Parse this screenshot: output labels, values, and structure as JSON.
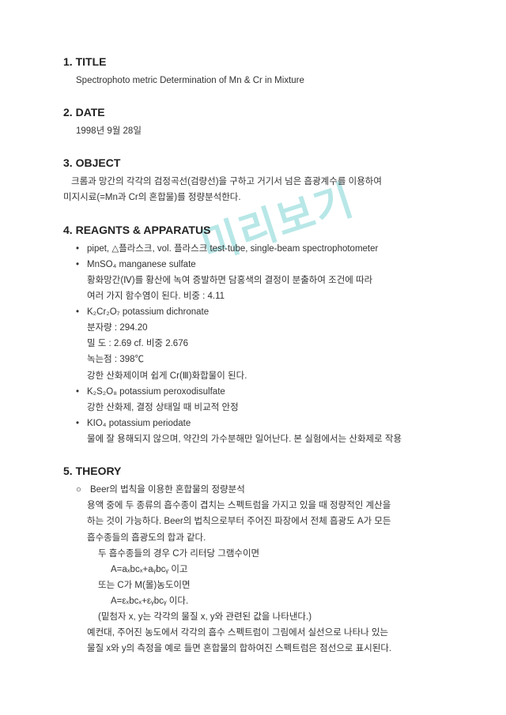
{
  "watermark": "미리보기",
  "sections": {
    "title": {
      "num": "1.",
      "heading": "TITLE",
      "body": "Spectrophoto metric Determination of Mn & Cr in Mixture"
    },
    "date": {
      "num": "2.",
      "heading": "DATE",
      "body": "1998년 9월 28일"
    },
    "object": {
      "num": "3.",
      "heading": "OBJECT",
      "line1": "크롬과 망간의 각각의 검정곡선(검량선)을 구하고 거기서 넘은 흡광계수를 이용하여",
      "line2": "미지시료(=Mn과 Cr의 혼합물)를 정량분석한다."
    },
    "reagents": {
      "num": "4.",
      "heading": "REAGNTS & APPARATUS",
      "items": [
        {
          "head": "pipet, △플라스크, vol. 플라스크  test-tube, single-beam spectrophotometer",
          "subs": []
        },
        {
          "head": "MnSO₄ manganese sulfate",
          "subs": [
            "황화망간(Ⅳ)를 황산에 녹여 증발하면 담홍색의 결정이 분출하여 조건에 따라",
            "여러 가지 함수염이 된다. 비중 : 4.11"
          ]
        },
        {
          "head": "K₂Cr₂O₇ potassium dichronate",
          "subs": [
            "분자량 : 294.20",
            "밀  도 : 2.69    cf. 비중 2.676",
            "녹는점 : 398℃",
            "강한 산화제이며 쉽게 Cr(Ⅲ)화합물이 된다."
          ]
        },
        {
          "head": "K₂S₂O₈ potassium peroxodisulfate",
          "subs": [
            "강한 산화제, 결정 상태일 때 비교적 안정"
          ]
        },
        {
          "head": "KIO₄ potassium periodate",
          "subs": [
            "물에 잘 용해되지 않으며, 약간의 가수분해만 일어난다. 본 실험에서는 산화제로 작용"
          ]
        }
      ]
    },
    "theory": {
      "num": "5.",
      "heading": "THEORY",
      "circleMark": "○",
      "circleText": "Beer의 법칙을 이용한 혼합물의 정량분석",
      "para1a": "용액 중에 두 종류의 흡수종이 겹치는 스펙트럼을 가지고 있을 때 정량적인 계산을",
      "para1b": "하는 것이 가능하다. Beer의 법칙으로부터 주어진 파장에서 전체 흡광도 A가 모든",
      "para1c": "흡수종들의 흡광도의 합과 같다.",
      "line2": "두 흡수종들의 경우 C가 리터당 그램수이면",
      "eq1": "A=aₓbcₓ+aᵧbcᵧ 이고",
      "line3": "또는 C가 M(몰)농도이면",
      "eq2": "A=εₓbcₓ+εᵧbcᵧ 이다.",
      "note": "(밑첨자 x, y는 각각의 물질 x, y와 관련된 값을 나타낸다.)",
      "para2a": "예컨대, 주어진 농도에서 각각의 흡수 스펙트럼이 그림에서 실선으로 나타나 있는",
      "para2b": "물질 x와 y의 측정을 예로 들면 혼합물의 합하여진 스펙트럼은 점선으로 표시된다."
    }
  },
  "style": {
    "bg": "#ffffff",
    "text": "#333333",
    "heading": "#222222",
    "watermarkColor": "#7fd4d4",
    "fontSizeBody": 11.5,
    "fontSizeHeading": 14,
    "watermarkFontSize": 52
  }
}
